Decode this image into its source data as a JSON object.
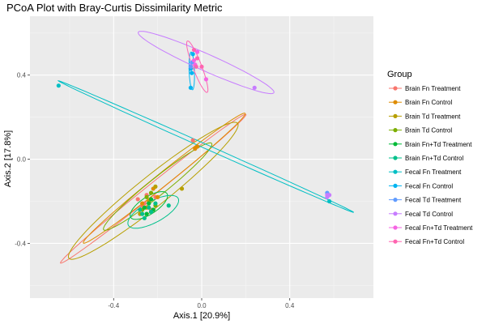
{
  "chart_data": {
    "type": "scatter",
    "title": "PCoA Plot with Bray-Curtis Dissimilarity Metric",
    "xlabel": "Axis.1   [20.9%]",
    "ylabel": "Axis.2   [17.8%]",
    "xlim": [
      -0.78,
      0.78
    ],
    "ylim": [
      -0.66,
      0.68
    ],
    "x_ticks": [
      -0.4,
      0.0,
      0.4
    ],
    "y_ticks": [
      -0.4,
      0.0,
      0.4
    ],
    "x_tick_labels": [
      "-0.4",
      "0.0",
      "0.4"
    ],
    "y_tick_labels": [
      "-0.4",
      "0.0",
      "0.4"
    ],
    "grid": true,
    "legend_title": "Group",
    "legend_position": "right",
    "series": [
      {
        "name": "Brain Fn Treatment",
        "color": "#F8766D",
        "x": [
          -0.29,
          -0.27,
          -0.25,
          -0.23,
          -0.21,
          -0.26,
          -0.04
        ],
        "y": [
          -0.19,
          -0.22,
          -0.17,
          -0.24,
          -0.18,
          -0.21,
          0.09
        ],
        "ellipse": {
          "cx": -0.22,
          "cy": -0.14,
          "a": 0.55,
          "b": 0.025,
          "angle_deg": 40
        }
      },
      {
        "name": "Brain Fn Control",
        "color": "#DE8C00",
        "x": [
          -0.22,
          -0.2,
          -0.25,
          -0.27,
          -0.03,
          -0.02
        ],
        "y": [
          -0.14,
          -0.18,
          -0.23,
          -0.21,
          0.05,
          0.06
        ],
        "ellipse": {
          "cx": -0.17,
          "cy": -0.09,
          "a": 0.48,
          "b": 0.03,
          "angle_deg": 40
        }
      },
      {
        "name": "Brain Td Treatment",
        "color": "#B79F00",
        "x": [
          -0.28,
          -0.22,
          -0.09,
          -0.21,
          -0.24
        ],
        "y": [
          -0.26,
          -0.24,
          -0.14,
          -0.13,
          -0.2
        ],
        "ellipse": {
          "cx": -0.22,
          "cy": -0.15,
          "a": 0.5,
          "b": 0.07,
          "angle_deg": 40
        }
      },
      {
        "name": "Brain Td Control",
        "color": "#7CAE00",
        "x": [
          -0.25,
          -0.23,
          -0.21,
          -0.27
        ],
        "y": [
          -0.18,
          -0.16,
          -0.22,
          -0.24
        ],
        "ellipse": {
          "cx": -0.2,
          "cy": -0.13,
          "a": 0.32,
          "b": 0.04,
          "angle_deg": 40
        }
      },
      {
        "name": "Brain Fn+Td Treatment",
        "color": "#00BA38",
        "x": [
          -0.26,
          -0.24,
          -0.22,
          -0.25,
          -0.23
        ],
        "y": [
          -0.23,
          -0.21,
          -0.24,
          -0.26,
          -0.19
        ],
        "ellipse": {
          "cx": -0.24,
          "cy": -0.22,
          "a": 0.1,
          "b": 0.04,
          "angle_deg": 35
        }
      },
      {
        "name": "Brain Fn+Td Control",
        "color": "#00C08B",
        "x": [
          -0.27,
          -0.24,
          -0.21,
          -0.26,
          -0.15,
          -0.23,
          -0.28
        ],
        "y": [
          -0.26,
          -0.23,
          -0.21,
          -0.28,
          -0.22,
          -0.25,
          -0.24
        ],
        "ellipse": {
          "cx": -0.22,
          "cy": -0.25,
          "a": 0.13,
          "b": 0.05,
          "angle_deg": 30
        }
      },
      {
        "name": "Fecal Fn Treatment",
        "color": "#00BFC4",
        "x": [
          -0.65,
          0.58
        ],
        "y": [
          0.35,
          -0.2
        ],
        "ellipse": {
          "cx": 0.02,
          "cy": 0.06,
          "a": 0.74,
          "b": 0.01,
          "angle_deg": -25
        }
      },
      {
        "name": "Fecal Fn Control",
        "color": "#00B4F0",
        "x": [
          -0.05,
          -0.045,
          -0.05,
          -0.04
        ],
        "y": [
          0.43,
          0.41,
          0.34,
          0.5
        ],
        "ellipse": {
          "cx": -0.045,
          "cy": 0.42,
          "a": 0.09,
          "b": 0.012,
          "angle_deg": -88
        }
      },
      {
        "name": "Fecal Td Treatment",
        "color": "#619CFF",
        "x": [
          -0.05,
          -0.045,
          0.57,
          0.575
        ],
        "y": [
          0.44,
          0.46,
          -0.16,
          -0.17
        ],
        "ellipse": null
      },
      {
        "name": "Fecal Td Control",
        "color": "#C77CFF",
        "x": [
          0.57,
          0.58,
          0.57,
          0.24
        ],
        "y": [
          -0.18,
          -0.17,
          -0.17,
          0.34
        ],
        "ellipse": {
          "cx": 0.02,
          "cy": 0.46,
          "a": 0.34,
          "b": 0.04,
          "angle_deg": -25
        }
      },
      {
        "name": "Fecal Fn+Td Treatment",
        "color": "#F564E3",
        "x": [
          -0.02,
          -0.035,
          -0.03,
          0.02
        ],
        "y": [
          0.51,
          0.47,
          0.45,
          0.38
        ],
        "ellipse": null
      },
      {
        "name": "Fecal Fn+Td Control",
        "color": "#FF64B0",
        "x": [
          -0.035,
          -0.02,
          -0.025,
          0.0
        ],
        "y": [
          0.52,
          0.48,
          0.44,
          0.44
        ],
        "ellipse": {
          "cx": -0.02,
          "cy": 0.44,
          "a": 0.13,
          "b": 0.02,
          "angle_deg": -70
        }
      }
    ]
  }
}
